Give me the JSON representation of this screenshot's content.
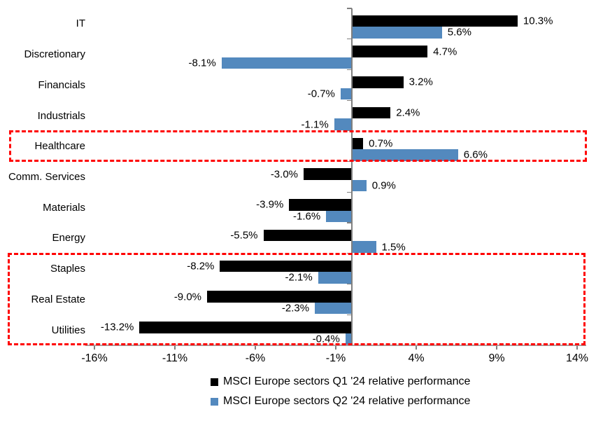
{
  "chart_data": {
    "type": "bar",
    "orientation": "horizontal",
    "title": "",
    "categories": [
      "IT",
      "Discretionary",
      "Financials",
      "Industrials",
      "Healthcare",
      "Comm. Services",
      "Materials",
      "Energy",
      "Staples",
      "Real Estate",
      "Utilities"
    ],
    "series": [
      {
        "name": "MSCI Europe sectors Q1 '24 relative performance",
        "color": "#000000",
        "values": [
          10.3,
          4.7,
          3.2,
          2.4,
          0.7,
          -3.0,
          -3.9,
          -5.5,
          -8.2,
          -9.0,
          -13.2
        ]
      },
      {
        "name": "MSCI Europe sectors Q2 '24 relative performance",
        "color": "#5389BE",
        "values": [
          5.6,
          -8.1,
          -0.7,
          -1.1,
          6.6,
          0.9,
          -1.6,
          1.5,
          -2.1,
          -2.3,
          -0.4
        ]
      }
    ],
    "x_ticks": [
      {
        "value": -16,
        "label": "-16%"
      },
      {
        "value": -11,
        "label": "-11%"
      },
      {
        "value": -6,
        "label": "-6%"
      },
      {
        "value": -1,
        "label": "-1%"
      },
      {
        "value": 4,
        "label": "4%"
      },
      {
        "value": 9,
        "label": "9%"
      },
      {
        "value": 14,
        "label": "14%"
      }
    ],
    "xlim": [
      -16.5,
      15.2
    ],
    "grid": false,
    "legend_position": "bottom",
    "value_label_format": "one-decimal-percent",
    "axis_color": "#7f7f7f",
    "highlight_color": "#ff0000",
    "highlights": [
      {
        "name": "healthcare-highlight",
        "categories": [
          "Healthcare"
        ]
      },
      {
        "name": "defensive-sectors-highlight",
        "categories": [
          "Staples",
          "Real Estate",
          "Utilities"
        ]
      }
    ]
  }
}
